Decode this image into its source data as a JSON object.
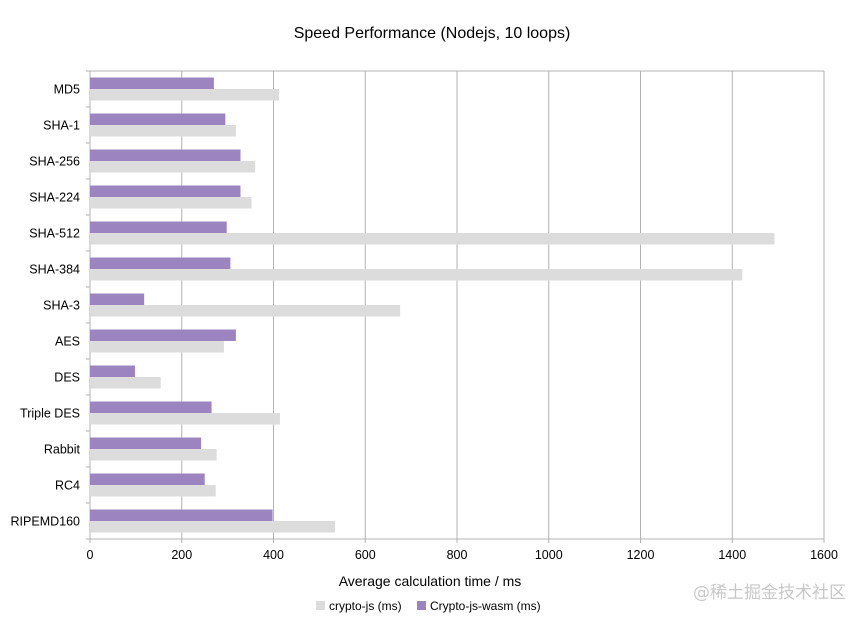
{
  "chart_data": {
    "type": "bar",
    "orientation": "horizontal",
    "title": "Speed Performance (Nodejs, 10 loops)",
    "xlabel": "Average calculation time / ms",
    "ylabel": "",
    "xlim": [
      0,
      1600
    ],
    "xticks": [
      0,
      200,
      400,
      600,
      800,
      1000,
      1200,
      1400,
      1600
    ],
    "grid": "vertical",
    "legend_position": "bottom",
    "categories": [
      "MD5",
      "SHA-1",
      "SHA-256",
      "SHA-224",
      "SHA-512",
      "SHA-384",
      "SHA-3",
      "AES",
      "DES",
      "Triple DES",
      "Rabbit",
      "RC4",
      "RIPEMD160"
    ],
    "series": [
      {
        "name": "crypto-js (ms)",
        "color": "#dcdcdc",
        "values": [
          412,
          318,
          360,
          352,
          1492,
          1422,
          676,
          292,
          154,
          414,
          276,
          274,
          534
        ]
      },
      {
        "name": "Crypto-js-wasm (ms)",
        "color": "#9b84bf",
        "values": [
          270,
          295,
          328,
          328,
          298,
          306,
          118,
          318,
          98,
          265,
          242,
          250,
          398
        ]
      }
    ]
  },
  "watermark": "@稀土掘金技术社区"
}
